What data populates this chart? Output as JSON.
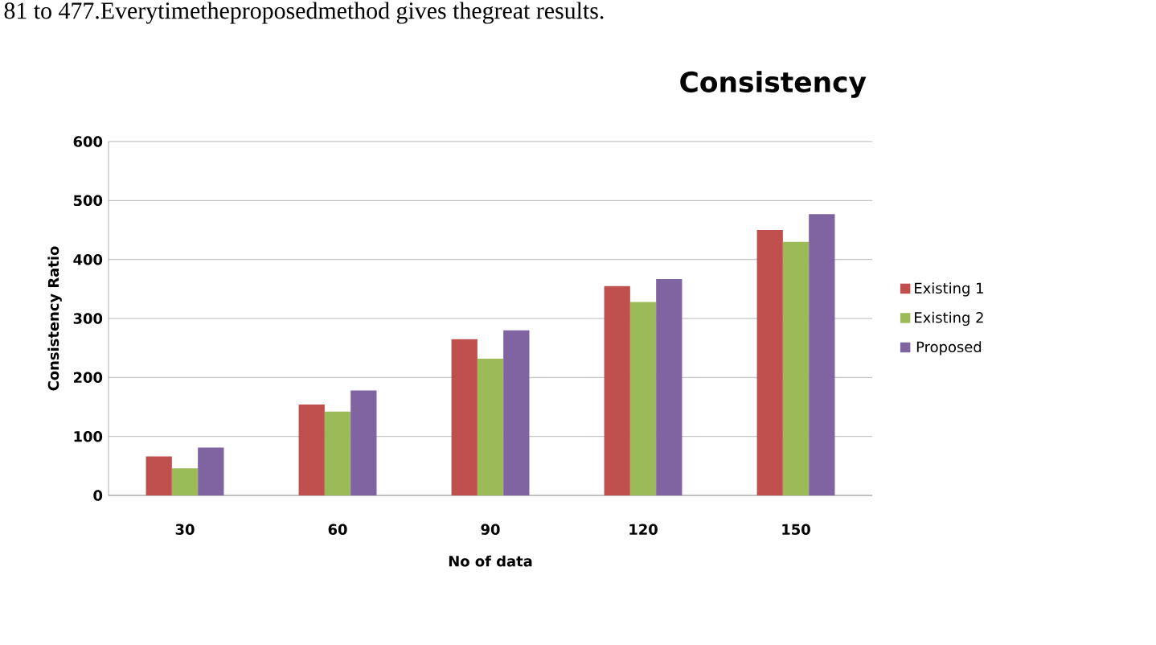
{
  "chart_data": {
    "type": "bar",
    "title": "Consistency",
    "xlabel": "No of data",
    "ylabel": "Consistency Ratio",
    "annotations": [
      "81 to 477.Everytimetheproposedmethod gives thegreat results."
    ],
    "categories": [
      "30",
      "60",
      "90",
      "120",
      "150"
    ],
    "series": [
      {
        "name": "Existing 1",
        "color": "#c0504d",
        "values": [
          66,
          154,
          265,
          355,
          450
        ]
      },
      {
        "name": "Existing 2",
        "color": "#9bbb59",
        "values": [
          46,
          142,
          232,
          328,
          430
        ]
      },
      {
        "name": "Proposed",
        "color": "#8064a2",
        "values": [
          81,
          178,
          280,
          367,
          477
        ]
      }
    ],
    "ylim": [
      0,
      600
    ],
    "yticks": [
      0,
      100,
      200,
      300,
      400,
      500,
      600
    ],
    "grid": "y",
    "legend": "right"
  }
}
